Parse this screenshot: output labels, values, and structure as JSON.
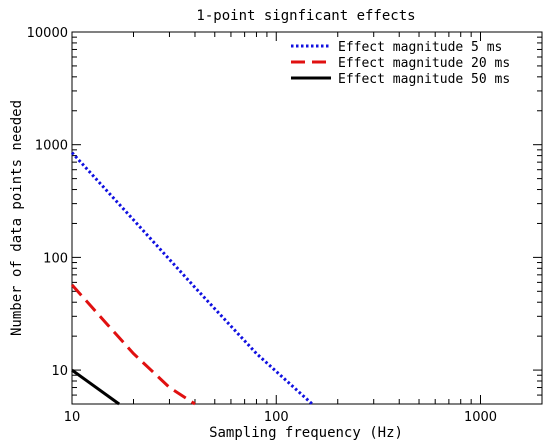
{
  "chart_data": {
    "type": "line",
    "title": "1-point signficant effects",
    "xlabel": "Sampling frequency (Hz)",
    "ylabel": "Number of data points needed",
    "xscale": "log",
    "yscale": "log",
    "xlim": [
      10,
      2000
    ],
    "ylim": [
      5,
      10000
    ],
    "xticks": [
      10,
      100,
      1000
    ],
    "xtick_labels": [
      "10",
      "100",
      "1000"
    ],
    "yticks": [
      10,
      100,
      1000,
      10000
    ],
    "ytick_labels": [
      "10",
      "100",
      "1000",
      "10000"
    ],
    "grid": false,
    "legend_position": "top-right",
    "series": [
      {
        "name": "Effect magnitude 5 ms",
        "color": "#1010e0",
        "style": "dotted",
        "x": [
          10,
          20,
          40,
          80,
          150
        ],
        "y": [
          850,
          215,
          54,
          14,
          5
        ]
      },
      {
        "name": "Effect magnitude 20 ms",
        "color": "#e01010",
        "style": "dashed",
        "x": [
          10,
          15,
          20,
          30,
          40
        ],
        "y": [
          57,
          25,
          14,
          7,
          5
        ]
      },
      {
        "name": "Effect magnitude 50 ms",
        "color": "#000000",
        "style": "solid",
        "x": [
          10,
          17
        ],
        "y": [
          10,
          5
        ]
      }
    ]
  }
}
